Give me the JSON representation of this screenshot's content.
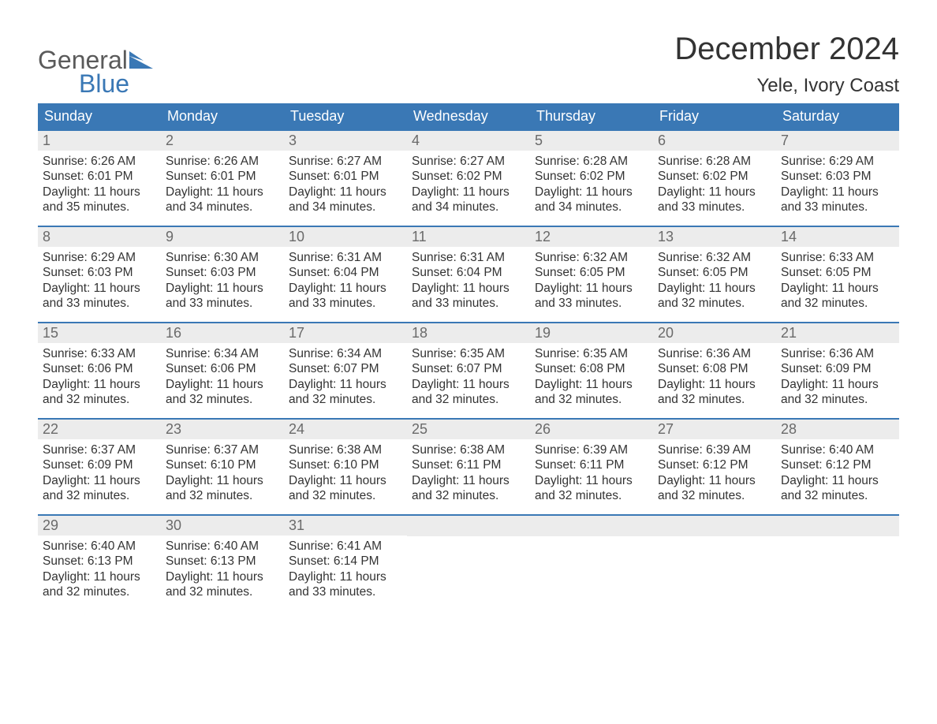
{
  "logo": {
    "word1": "General",
    "word2": "Blue",
    "flag_color": "#3a78b5",
    "word1_color": "#5a5a5a",
    "word2_color": "#3a78b5"
  },
  "title": "December 2024",
  "location": "Yele, Ivory Coast",
  "colors": {
    "header_bg": "#3a78b5",
    "header_text": "#ffffff",
    "daynum_bg": "#ececec",
    "daynum_text": "#6a6a6a",
    "body_text": "#333333",
    "row_border": "#3a78b5"
  },
  "days_of_week": [
    "Sunday",
    "Monday",
    "Tuesday",
    "Wednesday",
    "Thursday",
    "Friday",
    "Saturday"
  ],
  "labels": {
    "sunrise": "Sunrise:",
    "sunset": "Sunset:",
    "daylight": "Daylight:"
  },
  "weeks": [
    [
      {
        "num": "1",
        "sunrise": "6:26 AM",
        "sunset": "6:01 PM",
        "daylight1": "11 hours",
        "daylight2": "and 35 minutes."
      },
      {
        "num": "2",
        "sunrise": "6:26 AM",
        "sunset": "6:01 PM",
        "daylight1": "11 hours",
        "daylight2": "and 34 minutes."
      },
      {
        "num": "3",
        "sunrise": "6:27 AM",
        "sunset": "6:01 PM",
        "daylight1": "11 hours",
        "daylight2": "and 34 minutes."
      },
      {
        "num": "4",
        "sunrise": "6:27 AM",
        "sunset": "6:02 PM",
        "daylight1": "11 hours",
        "daylight2": "and 34 minutes."
      },
      {
        "num": "5",
        "sunrise": "6:28 AM",
        "sunset": "6:02 PM",
        "daylight1": "11 hours",
        "daylight2": "and 34 minutes."
      },
      {
        "num": "6",
        "sunrise": "6:28 AM",
        "sunset": "6:02 PM",
        "daylight1": "11 hours",
        "daylight2": "and 33 minutes."
      },
      {
        "num": "7",
        "sunrise": "6:29 AM",
        "sunset": "6:03 PM",
        "daylight1": "11 hours",
        "daylight2": "and 33 minutes."
      }
    ],
    [
      {
        "num": "8",
        "sunrise": "6:29 AM",
        "sunset": "6:03 PM",
        "daylight1": "11 hours",
        "daylight2": "and 33 minutes."
      },
      {
        "num": "9",
        "sunrise": "6:30 AM",
        "sunset": "6:03 PM",
        "daylight1": "11 hours",
        "daylight2": "and 33 minutes."
      },
      {
        "num": "10",
        "sunrise": "6:31 AM",
        "sunset": "6:04 PM",
        "daylight1": "11 hours",
        "daylight2": "and 33 minutes."
      },
      {
        "num": "11",
        "sunrise": "6:31 AM",
        "sunset": "6:04 PM",
        "daylight1": "11 hours",
        "daylight2": "and 33 minutes."
      },
      {
        "num": "12",
        "sunrise": "6:32 AM",
        "sunset": "6:05 PM",
        "daylight1": "11 hours",
        "daylight2": "and 33 minutes."
      },
      {
        "num": "13",
        "sunrise": "6:32 AM",
        "sunset": "6:05 PM",
        "daylight1": "11 hours",
        "daylight2": "and 32 minutes."
      },
      {
        "num": "14",
        "sunrise": "6:33 AM",
        "sunset": "6:05 PM",
        "daylight1": "11 hours",
        "daylight2": "and 32 minutes."
      }
    ],
    [
      {
        "num": "15",
        "sunrise": "6:33 AM",
        "sunset": "6:06 PM",
        "daylight1": "11 hours",
        "daylight2": "and 32 minutes."
      },
      {
        "num": "16",
        "sunrise": "6:34 AM",
        "sunset": "6:06 PM",
        "daylight1": "11 hours",
        "daylight2": "and 32 minutes."
      },
      {
        "num": "17",
        "sunrise": "6:34 AM",
        "sunset": "6:07 PM",
        "daylight1": "11 hours",
        "daylight2": "and 32 minutes."
      },
      {
        "num": "18",
        "sunrise": "6:35 AM",
        "sunset": "6:07 PM",
        "daylight1": "11 hours",
        "daylight2": "and 32 minutes."
      },
      {
        "num": "19",
        "sunrise": "6:35 AM",
        "sunset": "6:08 PM",
        "daylight1": "11 hours",
        "daylight2": "and 32 minutes."
      },
      {
        "num": "20",
        "sunrise": "6:36 AM",
        "sunset": "6:08 PM",
        "daylight1": "11 hours",
        "daylight2": "and 32 minutes."
      },
      {
        "num": "21",
        "sunrise": "6:36 AM",
        "sunset": "6:09 PM",
        "daylight1": "11 hours",
        "daylight2": "and 32 minutes."
      }
    ],
    [
      {
        "num": "22",
        "sunrise": "6:37 AM",
        "sunset": "6:09 PM",
        "daylight1": "11 hours",
        "daylight2": "and 32 minutes."
      },
      {
        "num": "23",
        "sunrise": "6:37 AM",
        "sunset": "6:10 PM",
        "daylight1": "11 hours",
        "daylight2": "and 32 minutes."
      },
      {
        "num": "24",
        "sunrise": "6:38 AM",
        "sunset": "6:10 PM",
        "daylight1": "11 hours",
        "daylight2": "and 32 minutes."
      },
      {
        "num": "25",
        "sunrise": "6:38 AM",
        "sunset": "6:11 PM",
        "daylight1": "11 hours",
        "daylight2": "and 32 minutes."
      },
      {
        "num": "26",
        "sunrise": "6:39 AM",
        "sunset": "6:11 PM",
        "daylight1": "11 hours",
        "daylight2": "and 32 minutes."
      },
      {
        "num": "27",
        "sunrise": "6:39 AM",
        "sunset": "6:12 PM",
        "daylight1": "11 hours",
        "daylight2": "and 32 minutes."
      },
      {
        "num": "28",
        "sunrise": "6:40 AM",
        "sunset": "6:12 PM",
        "daylight1": "11 hours",
        "daylight2": "and 32 minutes."
      }
    ],
    [
      {
        "num": "29",
        "sunrise": "6:40 AM",
        "sunset": "6:13 PM",
        "daylight1": "11 hours",
        "daylight2": "and 32 minutes."
      },
      {
        "num": "30",
        "sunrise": "6:40 AM",
        "sunset": "6:13 PM",
        "daylight1": "11 hours",
        "daylight2": "and 32 minutes."
      },
      {
        "num": "31",
        "sunrise": "6:41 AM",
        "sunset": "6:14 PM",
        "daylight1": "11 hours",
        "daylight2": "and 33 minutes."
      },
      {
        "empty": true
      },
      {
        "empty": true
      },
      {
        "empty": true
      },
      {
        "empty": true
      }
    ]
  ]
}
